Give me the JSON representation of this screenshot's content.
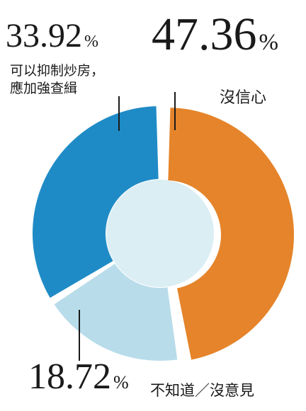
{
  "chart_data": {
    "type": "pie",
    "style": "donut",
    "unit": "%",
    "slices": [
      {
        "label": "沒信心",
        "value": 47.36,
        "value_text": "47.36",
        "color": "#e5842a"
      },
      {
        "label": "不知道／沒意見",
        "value": 18.72,
        "value_text": "18.72",
        "color": "#b8dcea"
      },
      {
        "label": "可以抑制炒房，應加強查緝",
        "label_lines": [
          "可以抑制炒房，",
          "應加強查緝"
        ],
        "value": 33.92,
        "value_text": "33.92",
        "color": "#1f8bc6"
      }
    ],
    "hole_color": "#dbeef4",
    "line_color": "#1a1a1a"
  }
}
